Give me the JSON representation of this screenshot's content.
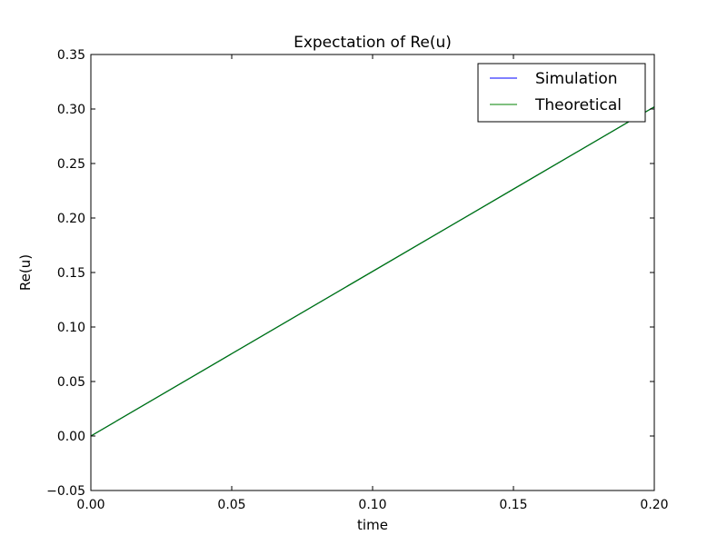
{
  "chart_data": {
    "type": "line",
    "title": "Expectation of Re(u)",
    "xlabel": "time",
    "ylabel": "Re(u)",
    "xlim": [
      0.0,
      0.2
    ],
    "ylim": [
      -0.05,
      0.35
    ],
    "xticks": [
      0.0,
      0.05,
      0.1,
      0.15,
      0.2
    ],
    "xtick_labels": [
      "0.00",
      "0.05",
      "0.10",
      "0.15",
      "0.20"
    ],
    "yticks": [
      -0.05,
      0.0,
      0.05,
      0.1,
      0.15,
      0.2,
      0.25,
      0.3,
      0.35
    ],
    "ytick_labels": [
      "−0.05",
      "0.00",
      "0.05",
      "0.10",
      "0.15",
      "0.20",
      "0.25",
      "0.30",
      "0.35"
    ],
    "grid": false,
    "legend_position": "top-right",
    "series": [
      {
        "name": "Simulation",
        "color": "#0000ff",
        "x": [
          0.0,
          0.05,
          0.1,
          0.15,
          0.2
        ],
        "y": [
          0.0,
          0.0755,
          0.151,
          0.2265,
          0.302
        ]
      },
      {
        "name": "Theoretical",
        "color": "#008000",
        "x": [
          0.0,
          0.05,
          0.1,
          0.15,
          0.2
        ],
        "y": [
          0.0,
          0.0755,
          0.151,
          0.2265,
          0.302
        ]
      }
    ]
  }
}
